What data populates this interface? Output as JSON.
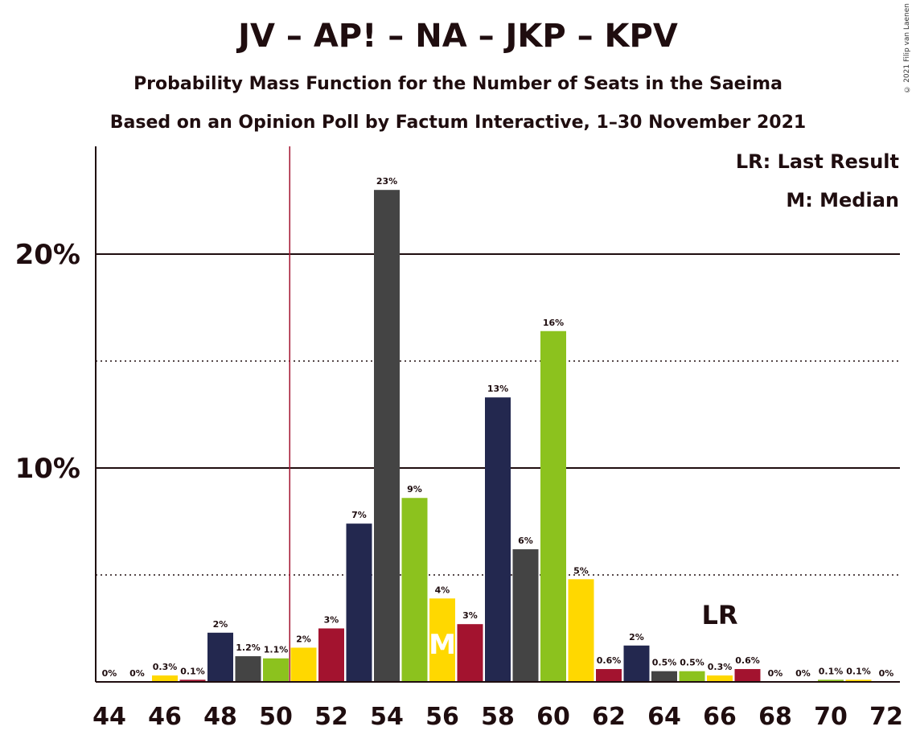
{
  "title": "JV – AP! – NA – JKP – KPV",
  "subtitle1": "Probability Mass Function for the Number of Seats in the Saeima",
  "subtitle2": "Based on an Opinion Poll by Factum Interactive, 1–30 November 2021",
  "copyright": "© 2021 Filip van Laenen",
  "legend": {
    "lr": "LR: Last Result",
    "m": "M: Median"
  },
  "markers": {
    "lr_text": "LR",
    "m_text": "M"
  },
  "chart_data": {
    "type": "bar",
    "x": [
      44,
      45,
      46,
      47,
      48,
      49,
      50,
      51,
      52,
      53,
      54,
      55,
      56,
      57,
      58,
      59,
      60,
      61,
      62,
      63,
      64,
      65,
      66,
      67,
      68,
      69,
      70,
      71,
      72
    ],
    "values": [
      0,
      0,
      0.3,
      0.1,
      2.3,
      1.2,
      1.1,
      1.6,
      2.5,
      7.4,
      23.0,
      8.6,
      3.9,
      2.7,
      13.3,
      6.2,
      16.4,
      4.8,
      0.6,
      1.7,
      0.5,
      0.5,
      0.3,
      0.6,
      0,
      0,
      0.1,
      0.1,
      0
    ],
    "labels": [
      "0%",
      "0%",
      "0.3%",
      "0.1%",
      "2%",
      "1.2%",
      "1.1%",
      "2%",
      "3%",
      "7%",
      "23%",
      "9%",
      "4%",
      "3%",
      "13%",
      "6%",
      "16%",
      "5%",
      "0.6%",
      "2%",
      "0.5%",
      "0.5%",
      "0.3%",
      "0.6%",
      "0%",
      "0%",
      "0.1%",
      "0.1%",
      "0%"
    ],
    "colors": [
      "#23284f",
      "#444444",
      "#ffd800",
      "#a3132f",
      "#23284f",
      "#444444",
      "#8cc21e",
      "#ffd800",
      "#a3132f",
      "#23284f",
      "#444444",
      "#8cc21e",
      "#ffd800",
      "#a3132f",
      "#23284f",
      "#444444",
      "#8cc21e",
      "#ffd800",
      "#a3132f",
      "#23284f",
      "#444444",
      "#8cc21e",
      "#ffd800",
      "#a3132f",
      "#23284f",
      "#444444",
      "#8cc21e",
      "#ffd800",
      "#a3132f"
    ],
    "x_tick_labels": [
      "44",
      "46",
      "48",
      "50",
      "52",
      "54",
      "56",
      "58",
      "60",
      "62",
      "64",
      "66",
      "68",
      "70",
      "72"
    ],
    "y_tick_labels": [
      "10%",
      "20%"
    ],
    "y_solid_gridlines": [
      10,
      20
    ],
    "y_dotted_gridlines": [
      5,
      15
    ],
    "ylim": [
      0,
      25
    ],
    "last_result_seats": 51,
    "median_seats": 56,
    "lr_label_at_seats": 66
  }
}
